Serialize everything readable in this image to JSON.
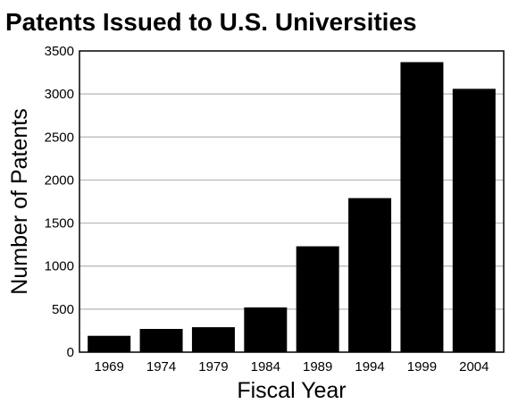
{
  "chart_data": {
    "type": "bar",
    "title": "Patents Issued to U.S. Universities",
    "xlabel": "Fiscal Year",
    "ylabel": "Number of Patents",
    "categories": [
      "1969",
      "1974",
      "1979",
      "1984",
      "1989",
      "1994",
      "1999",
      "2004"
    ],
    "values": [
      190,
      270,
      290,
      520,
      1230,
      1790,
      3370,
      3060
    ],
    "ylim": [
      0,
      3500
    ],
    "yticks": [
      0,
      500,
      1000,
      1500,
      2000,
      2500,
      3000,
      3500
    ],
    "ytick_labels": [
      "0",
      "500",
      "1000",
      "1500",
      "2000",
      "2500",
      "3000",
      "3500"
    ],
    "grid": true,
    "bar_color": "#000000",
    "grid_color": "#b5b5b5"
  }
}
